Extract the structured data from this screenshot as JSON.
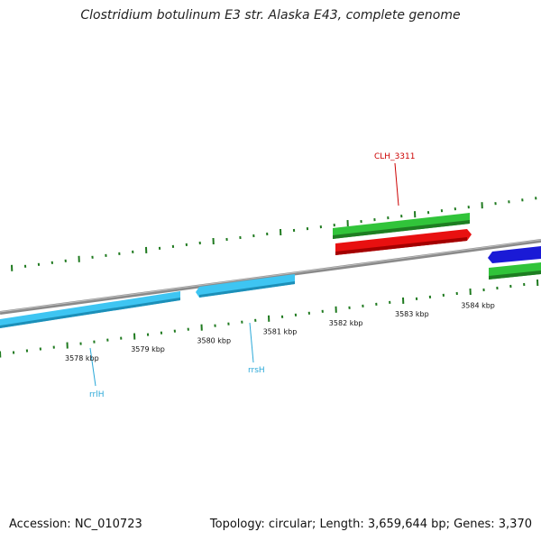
{
  "title": "Clostridium botulinum E3 str. Alaska E43, complete genome",
  "accession_line": "Accession: NC_010723",
  "summary_line": "Topology: circular; Length: 3,659,644 bp; Genes: 3,370",
  "colors": {
    "backbone": "#8a8a8a",
    "ticks": "#1f7a1f",
    "rna": "#3ec5f2",
    "cds_forward": "#31c43a",
    "cds_reverse": "#e81010",
    "cds_blue": "#1a1ad6",
    "label_red": "#cc0000",
    "label_cyan": "#2aa8d8"
  },
  "scale_labels": [
    {
      "text": "3578 kbp",
      "pos_kbp": 3578
    },
    {
      "text": "3579 kbp",
      "pos_kbp": 3579
    },
    {
      "text": "3580 kbp",
      "pos_kbp": 3580
    },
    {
      "text": "3581 kbp",
      "pos_kbp": 3581
    },
    {
      "text": "3582 kbp",
      "pos_kbp": 3582
    },
    {
      "text": "3583 kbp",
      "pos_kbp": 3583
    },
    {
      "text": "3584 kbp",
      "pos_kbp": 3584
    }
  ],
  "features": [
    {
      "label": "rrlH",
      "type": "rRNA"
    },
    {
      "label": "rrsH",
      "type": "rRNA"
    },
    {
      "label": "CLH_3311",
      "type": "CDS"
    }
  ]
}
